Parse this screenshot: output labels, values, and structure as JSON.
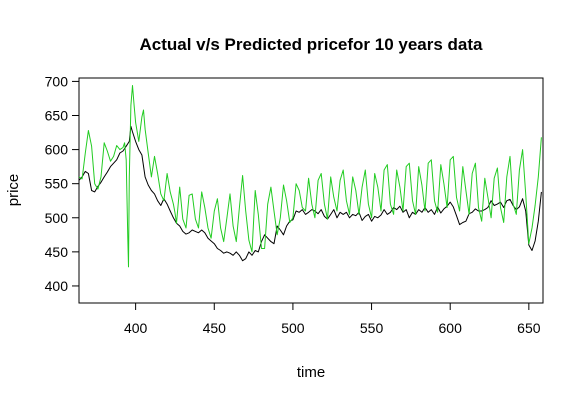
{
  "chart_data": {
    "type": "line",
    "title": "Actual v/s Predicted pricefor 10 years data",
    "xlabel": "time",
    "ylabel": "price",
    "xlim": [
      364,
      659
    ],
    "ylim": [
      375,
      705
    ],
    "x_ticks": [
      400,
      450,
      500,
      550,
      600,
      650
    ],
    "y_ticks": [
      400,
      450,
      500,
      550,
      600,
      650,
      700
    ],
    "grid": false,
    "legend": "none",
    "series": [
      {
        "color": "#000000",
        "values": [
          [
            364,
            555
          ],
          [
            366,
            560
          ],
          [
            368,
            568
          ],
          [
            370,
            565
          ],
          [
            372,
            540
          ],
          [
            374,
            538
          ],
          [
            376,
            546
          ],
          [
            378,
            552
          ],
          [
            380,
            560
          ],
          [
            382,
            567
          ],
          [
            384,
            575
          ],
          [
            386,
            580
          ],
          [
            388,
            585
          ],
          [
            390,
            595
          ],
          [
            392,
            598
          ],
          [
            394,
            605
          ],
          [
            396,
            612
          ],
          [
            397,
            634
          ],
          [
            398,
            626
          ],
          [
            400,
            612
          ],
          [
            402,
            600
          ],
          [
            404,
            592
          ],
          [
            406,
            560
          ],
          [
            408,
            548
          ],
          [
            410,
            540
          ],
          [
            412,
            535
          ],
          [
            414,
            525
          ],
          [
            416,
            518
          ],
          [
            418,
            528
          ],
          [
            420,
            520
          ],
          [
            422,
            510
          ],
          [
            424,
            500
          ],
          [
            426,
            492
          ],
          [
            428,
            488
          ],
          [
            430,
            480
          ],
          [
            432,
            476
          ],
          [
            434,
            478
          ],
          [
            436,
            482
          ],
          [
            438,
            480
          ],
          [
            440,
            478
          ],
          [
            442,
            482
          ],
          [
            444,
            478
          ],
          [
            446,
            470
          ],
          [
            448,
            466
          ],
          [
            450,
            462
          ],
          [
            452,
            455
          ],
          [
            454,
            452
          ],
          [
            456,
            448
          ],
          [
            458,
            450
          ],
          [
            460,
            448
          ],
          [
            462,
            445
          ],
          [
            464,
            450
          ],
          [
            466,
            445
          ],
          [
            468,
            437
          ],
          [
            470,
            440
          ],
          [
            472,
            450
          ],
          [
            474,
            445
          ],
          [
            476,
            452
          ],
          [
            478,
            450
          ],
          [
            480,
            465
          ],
          [
            482,
            475
          ],
          [
            484,
            470
          ],
          [
            486,
            465
          ],
          [
            488,
            462
          ],
          [
            490,
            488
          ],
          [
            492,
            482
          ],
          [
            494,
            475
          ],
          [
            496,
            488
          ],
          [
            498,
            495
          ],
          [
            500,
            497
          ],
          [
            502,
            510
          ],
          [
            504,
            508
          ],
          [
            506,
            512
          ],
          [
            508,
            505
          ],
          [
            510,
            508
          ],
          [
            512,
            512
          ],
          [
            514,
            510
          ],
          [
            516,
            506
          ],
          [
            518,
            512
          ],
          [
            520,
            502
          ],
          [
            522,
            498
          ],
          [
            524,
            505
          ],
          [
            526,
            512
          ],
          [
            528,
            500
          ],
          [
            530,
            508
          ],
          [
            532,
            505
          ],
          [
            534,
            508
          ],
          [
            536,
            500
          ],
          [
            538,
            505
          ],
          [
            540,
            503
          ],
          [
            542,
            508
          ],
          [
            544,
            496
          ],
          [
            546,
            502
          ],
          [
            548,
            505
          ],
          [
            550,
            495
          ],
          [
            552,
            502
          ],
          [
            554,
            500
          ],
          [
            556,
            504
          ],
          [
            558,
            512
          ],
          [
            560,
            505
          ],
          [
            562,
            508
          ],
          [
            564,
            515
          ],
          [
            566,
            512
          ],
          [
            568,
            517
          ],
          [
            570,
            508
          ],
          [
            572,
            512
          ],
          [
            574,
            500
          ],
          [
            576,
            508
          ],
          [
            578,
            505
          ],
          [
            580,
            512
          ],
          [
            582,
            508
          ],
          [
            584,
            515
          ],
          [
            586,
            508
          ],
          [
            588,
            512
          ],
          [
            590,
            505
          ],
          [
            592,
            516
          ],
          [
            594,
            507
          ],
          [
            596,
            513
          ],
          [
            598,
            517
          ],
          [
            600,
            523
          ],
          [
            602,
            516
          ],
          [
            604,
            503
          ],
          [
            606,
            490
          ],
          [
            608,
            493
          ],
          [
            610,
            495
          ],
          [
            612,
            506
          ],
          [
            614,
            508
          ],
          [
            616,
            513
          ],
          [
            618,
            510
          ],
          [
            620,
            510
          ],
          [
            622,
            512
          ],
          [
            624,
            515
          ],
          [
            626,
            525
          ],
          [
            628,
            518
          ],
          [
            630,
            520
          ],
          [
            632,
            523
          ],
          [
            634,
            515
          ],
          [
            636,
            525
          ],
          [
            638,
            527
          ],
          [
            640,
            518
          ],
          [
            642,
            512
          ],
          [
            644,
            516
          ],
          [
            646,
            528
          ],
          [
            648,
            510
          ],
          [
            650,
            460
          ],
          [
            652,
            452
          ],
          [
            654,
            466
          ],
          [
            656,
            495
          ],
          [
            658,
            538
          ]
        ]
      },
      {
        "color": "#22cc22",
        "values": [
          [
            364,
            560
          ],
          [
            366,
            557
          ],
          [
            368,
            595
          ],
          [
            370,
            628
          ],
          [
            372,
            605
          ],
          [
            374,
            550
          ],
          [
            376,
            542
          ],
          [
            378,
            560
          ],
          [
            380,
            610
          ],
          [
            382,
            598
          ],
          [
            384,
            583
          ],
          [
            386,
            590
          ],
          [
            388,
            606
          ],
          [
            390,
            600
          ],
          [
            392,
            603
          ],
          [
            393,
            610
          ],
          [
            394,
            585
          ],
          [
            395,
            470
          ],
          [
            395.5,
            428
          ],
          [
            396,
            560
          ],
          [
            397,
            665
          ],
          [
            398,
            694
          ],
          [
            399,
            665
          ],
          [
            400,
            640
          ],
          [
            402,
            612
          ],
          [
            404,
            648
          ],
          [
            405,
            658
          ],
          [
            406,
            630
          ],
          [
            408,
            595
          ],
          [
            410,
            560
          ],
          [
            412,
            590
          ],
          [
            414,
            565
          ],
          [
            416,
            535
          ],
          [
            418,
            525
          ],
          [
            420,
            565
          ],
          [
            422,
            538
          ],
          [
            424,
            520
          ],
          [
            425,
            508
          ],
          [
            426,
            492
          ],
          [
            428,
            545
          ],
          [
            430,
            498
          ],
          [
            432,
            485
          ],
          [
            434,
            533
          ],
          [
            436,
            535
          ],
          [
            438,
            498
          ],
          [
            440,
            485
          ],
          [
            442,
            538
          ],
          [
            444,
            515
          ],
          [
            446,
            485
          ],
          [
            448,
            470
          ],
          [
            450,
            510
          ],
          [
            452,
            528
          ],
          [
            454,
            485
          ],
          [
            456,
            465
          ],
          [
            458,
            500
          ],
          [
            460,
            535
          ],
          [
            462,
            488
          ],
          [
            464,
            465
          ],
          [
            466,
            515
          ],
          [
            468,
            562
          ],
          [
            470,
            510
          ],
          [
            472,
            467
          ],
          [
            474,
            450
          ],
          [
            476,
            540
          ],
          [
            478,
            505
          ],
          [
            480,
            455
          ],
          [
            482,
            455
          ],
          [
            484,
            520
          ],
          [
            486,
            545
          ],
          [
            488,
            510
          ],
          [
            490,
            475
          ],
          [
            492,
            500
          ],
          [
            494,
            548
          ],
          [
            496,
            525
          ],
          [
            498,
            493
          ],
          [
            500,
            500
          ],
          [
            502,
            550
          ],
          [
            504,
            540
          ],
          [
            506,
            515
          ],
          [
            508,
            510
          ],
          [
            510,
            558
          ],
          [
            512,
            520
          ],
          [
            514,
            500
          ],
          [
            516,
            555
          ],
          [
            518,
            565
          ],
          [
            520,
            520
          ],
          [
            522,
            498
          ],
          [
            524,
            560
          ],
          [
            526,
            530
          ],
          [
            528,
            510
          ],
          [
            530,
            555
          ],
          [
            532,
            570
          ],
          [
            534,
            525
          ],
          [
            536,
            505
          ],
          [
            538,
            560
          ],
          [
            540,
            540
          ],
          [
            542,
            505
          ],
          [
            544,
            545
          ],
          [
            546,
            570
          ],
          [
            548,
            520
          ],
          [
            550,
            500
          ],
          [
            552,
            565
          ],
          [
            554,
            545
          ],
          [
            556,
            510
          ],
          [
            558,
            570
          ],
          [
            560,
            578
          ],
          [
            562,
            520
          ],
          [
            564,
            505
          ],
          [
            566,
            570
          ],
          [
            568,
            545
          ],
          [
            570,
            510
          ],
          [
            572,
            575
          ],
          [
            574,
            580
          ],
          [
            576,
            525
          ],
          [
            578,
            505
          ],
          [
            580,
            575
          ],
          [
            582,
            548
          ],
          [
            584,
            510
          ],
          [
            586,
            580
          ],
          [
            588,
            585
          ],
          [
            590,
            525
          ],
          [
            592,
            508
          ],
          [
            594,
            578
          ],
          [
            596,
            550
          ],
          [
            598,
            515
          ],
          [
            600,
            585
          ],
          [
            602,
            590
          ],
          [
            604,
            530
          ],
          [
            606,
            510
          ],
          [
            608,
            575
          ],
          [
            610,
            540
          ],
          [
            612,
            505
          ],
          [
            614,
            565
          ],
          [
            616,
            580
          ],
          [
            618,
            515
          ],
          [
            620,
            495
          ],
          [
            622,
            558
          ],
          [
            624,
            530
          ],
          [
            626,
            500
          ],
          [
            628,
            558
          ],
          [
            630,
            573
          ],
          [
            632,
            515
          ],
          [
            634,
            493
          ],
          [
            636,
            560
          ],
          [
            638,
            590
          ],
          [
            640,
            520
          ],
          [
            642,
            505
          ],
          [
            644,
            570
          ],
          [
            646,
            600
          ],
          [
            648,
            535
          ],
          [
            650,
            462
          ],
          [
            652,
            485
          ],
          [
            654,
            518
          ],
          [
            656,
            560
          ],
          [
            658,
            618
          ]
        ]
      }
    ]
  }
}
